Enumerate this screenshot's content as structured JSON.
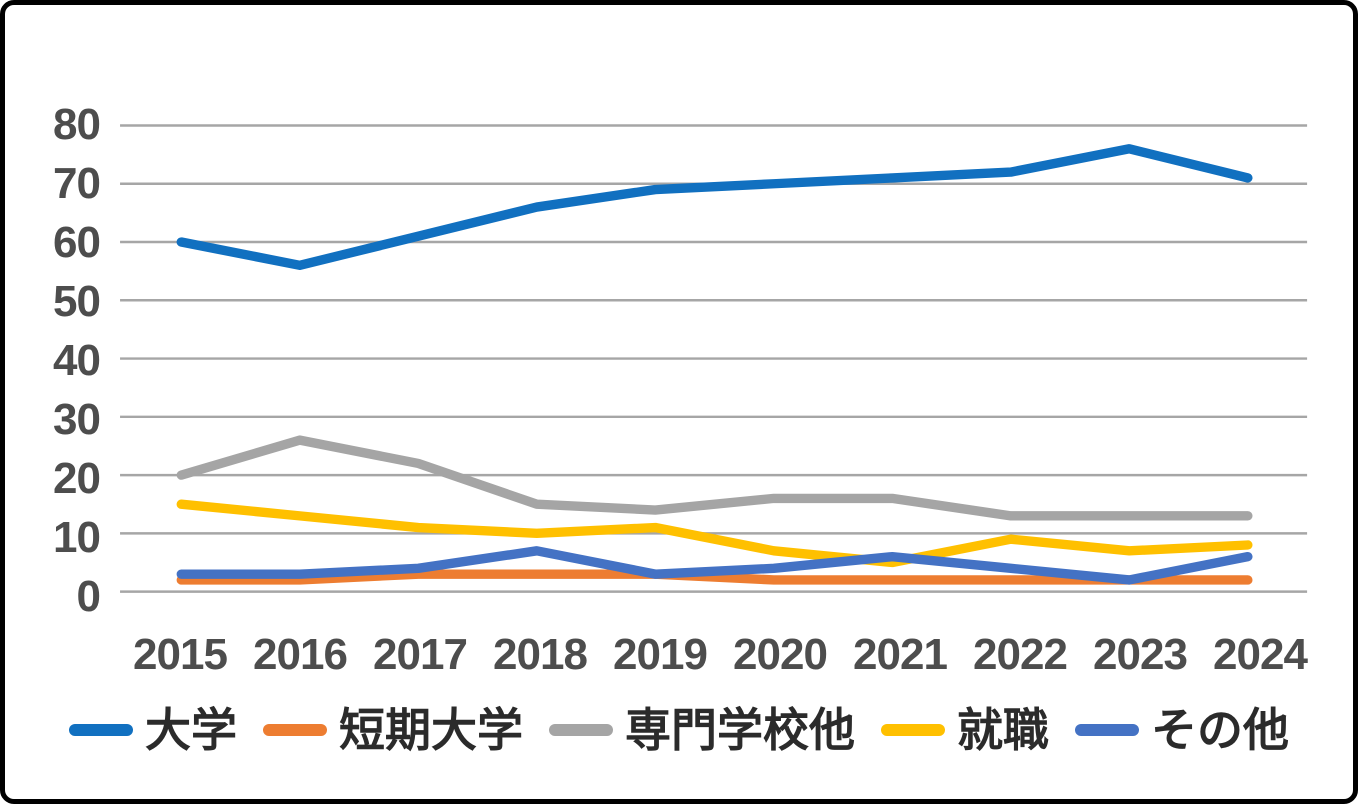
{
  "chart_data": {
    "type": "line",
    "title": "",
    "xlabel": "",
    "ylabel": "",
    "x_categories": [
      "2015",
      "2016",
      "2017",
      "2018",
      "2019",
      "2020",
      "2021",
      "2022",
      "2023",
      "2024"
    ],
    "series": [
      {
        "name": "大学",
        "color": "#1170C0",
        "values": [
          60,
          56,
          61,
          66,
          69,
          70,
          71,
          72,
          76,
          71
        ]
      },
      {
        "name": "短期大学",
        "color": "#ED7D31",
        "values": [
          2,
          2,
          3,
          3,
          3,
          2,
          2,
          2,
          2,
          2
        ]
      },
      {
        "name": "専門学校他",
        "color": "#A5A5A5",
        "values": [
          20,
          26,
          22,
          15,
          14,
          16,
          16,
          13,
          13,
          13
        ]
      },
      {
        "name": "就職",
        "color": "#FFC000",
        "values": [
          15,
          13,
          11,
          10,
          11,
          7,
          5,
          9,
          7,
          8
        ]
      },
      {
        "name": "その他",
        "color": "#4472C4",
        "values": [
          3,
          3,
          4,
          7,
          3,
          4,
          6,
          4,
          2,
          6
        ]
      }
    ],
    "ylim": [
      0,
      80
    ],
    "yticks": [
      0,
      10,
      20,
      30,
      40,
      50,
      60,
      70,
      80
    ],
    "grid": true,
    "legend_position": "bottom"
  },
  "style": {
    "background": "#FFFFFF",
    "frame_border": "#000000",
    "gridline_color": "#A6A6A6",
    "axis_label_color": "#4D4D4D",
    "legend_text_color": "#2B2B2B"
  }
}
